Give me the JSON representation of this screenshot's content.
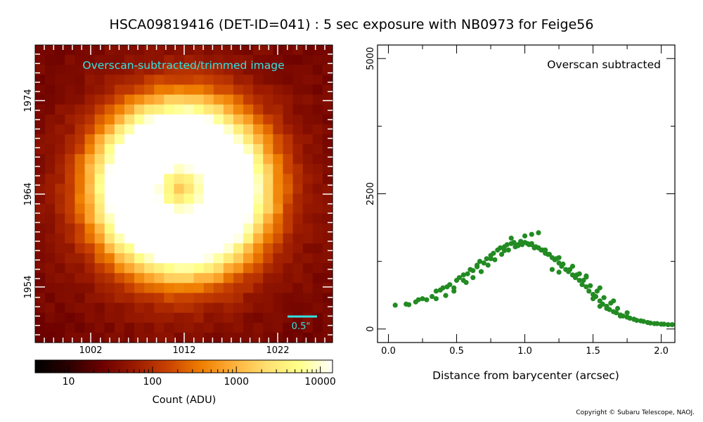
{
  "title": "HSCA09819416 (DET-ID=041) :  5 sec exposure with NB0973 for Feige56",
  "copyright": "Copyright © Subaru Telescope, NAOJ.",
  "chart_data": [
    {
      "type": "heatmap",
      "annotation": "Overscan-subtracted/trimmed image",
      "scale_bar_label": "0.5\"",
      "x_ticks": [
        "1002",
        "1012",
        "1022"
      ],
      "y_ticks": [
        "1974",
        "1964",
        "1954"
      ],
      "colormap": [
        "#000000",
        "#2b0000",
        "#6a0000",
        "#9a1a00",
        "#c84100",
        "#ee7d00",
        "#ffb03a",
        "#ffe070",
        "#ffff8a",
        "#ffffff"
      ],
      "colorbar": {
        "label": "Count (ADU)",
        "ticks": [
          "10",
          "100",
          "1000",
          "10000"
        ],
        "scale": "log"
      },
      "annotation_color": "#33e3e3"
    },
    {
      "type": "scatter",
      "xlabel": "Distance from barycenter (arcsec)",
      "ylabel": "",
      "annotation": "Overscan subtracted",
      "x_ticks": [
        "0.0",
        "0.5",
        "1.0",
        "1.5",
        "2.0"
      ],
      "y_ticks": [
        "0",
        "2500",
        "5000"
      ],
      "xlim": [
        -0.08,
        2.1
      ],
      "ylim": [
        -250,
        5250
      ],
      "marker_color": "#228b22",
      "x": [
        0.05,
        0.13,
        0.15,
        0.2,
        0.22,
        0.25,
        0.28,
        0.32,
        0.35,
        0.38,
        0.4,
        0.43,
        0.45,
        0.48,
        0.5,
        0.52,
        0.55,
        0.58,
        0.6,
        0.62,
        0.65,
        0.67,
        0.7,
        0.72,
        0.75,
        0.77,
        0.8,
        0.82,
        0.85,
        0.87,
        0.9,
        0.92,
        0.95,
        0.97,
        1.0,
        1.02,
        1.05,
        1.07,
        1.1,
        1.12,
        1.15,
        1.17,
        1.2,
        1.22,
        1.25,
        1.27,
        1.3,
        1.32,
        1.35,
        1.37,
        1.4,
        1.42,
        1.45,
        1.47,
        1.5,
        1.52,
        1.55,
        1.57,
        1.6,
        1.62,
        1.65,
        1.67,
        1.7,
        1.72,
        1.75,
        1.77,
        1.8,
        1.82,
        1.85,
        1.87,
        1.9,
        1.92,
        1.95,
        1.97,
        2.0,
        2.02,
        2.05,
        2.08,
        0.42,
        0.48,
        0.57,
        0.62,
        0.68,
        0.73,
        0.78,
        0.83,
        0.88,
        0.93,
        0.98,
        1.03,
        1.08,
        1.13,
        1.18,
        1.23,
        1.28,
        1.33,
        1.38,
        1.43,
        1.48,
        1.53,
        1.58,
        1.63,
        1.68,
        0.35,
        0.55,
        0.65,
        0.75,
        0.85,
        0.95,
        1.05,
        1.15,
        1.25,
        1.35,
        1.45,
        1.55,
        1.65,
        1.75,
        0.9,
        1.0,
        1.05,
        1.1,
        1.2,
        1.25,
        1.4,
        1.45,
        1.5,
        1.55,
        1.6,
        1.7,
        1.8
      ],
      "y": [
        440,
        460,
        450,
        500,
        540,
        560,
        540,
        600,
        700,
        720,
        760,
        780,
        820,
        760,
        900,
        950,
        1000,
        1020,
        1100,
        1080,
        1180,
        1250,
        1220,
        1300,
        1360,
        1400,
        1460,
        1500,
        1520,
        1560,
        1580,
        1600,
        1560,
        1620,
        1600,
        1580,
        1560,
        1500,
        1500,
        1460,
        1400,
        1380,
        1320,
        1280,
        1220,
        1160,
        1100,
        1060,
        1000,
        950,
        900,
        820,
        780,
        700,
        640,
        600,
        520,
        460,
        420,
        360,
        320,
        300,
        260,
        240,
        220,
        200,
        180,
        160,
        150,
        140,
        120,
        110,
        100,
        100,
        90,
        90,
        80,
        80,
        620,
        700,
        860,
        950,
        1060,
        1180,
        1280,
        1380,
        1460,
        1520,
        1560,
        1560,
        1520,
        1460,
        1380,
        1300,
        1200,
        1100,
        1000,
        900,
        800,
        700,
        580,
        480,
        380,
        560,
        900,
        1150,
        1300,
        1450,
        1540,
        1580,
        1460,
        1320,
        1160,
        960,
        760,
        520,
        300,
        1680,
        1720,
        1750,
        1780,
        1100,
        1050,
        1020,
        980,
        560,
        420,
        380,
        240,
        180
      ]
    }
  ]
}
